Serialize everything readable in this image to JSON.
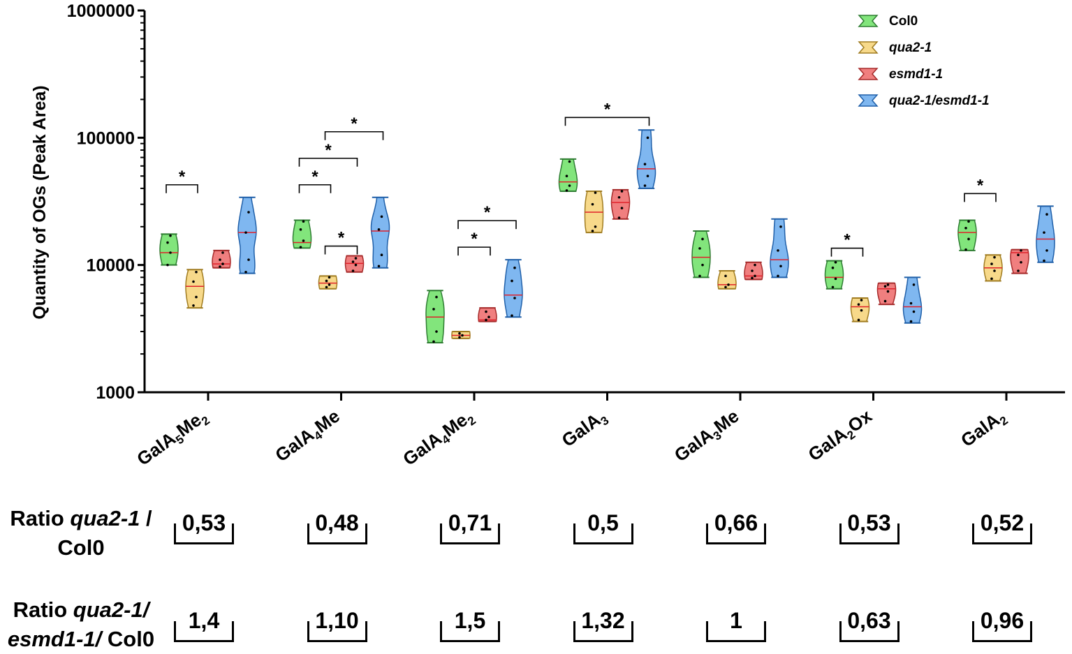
{
  "chart_data": {
    "type": "violin",
    "ylabel": "Quantity of OGs (Peak Area)",
    "yscale": "log",
    "ylim": [
      1000,
      1000000
    ],
    "yticks": [
      "1000",
      "10000",
      "100000",
      "1000000"
    ],
    "categories": [
      {
        "base": "GalA",
        "sub1": "5",
        "mid": "Me",
        "sub2": "2"
      },
      {
        "base": "GalA",
        "sub1": "4",
        "mid": "Me",
        "sub2": ""
      },
      {
        "base": "GalA",
        "sub1": "4",
        "mid": "Me",
        "sub2": "2"
      },
      {
        "base": "GalA",
        "sub1": "3",
        "mid": "",
        "sub2": ""
      },
      {
        "base": "GalA",
        "sub1": "3",
        "mid": "Me",
        "sub2": ""
      },
      {
        "base": "GalA",
        "sub1": "2",
        "mid": "Ox",
        "sub2": ""
      },
      {
        "base": "GalA",
        "sub1": "2",
        "mid": "",
        "sub2": ""
      }
    ],
    "series": [
      {
        "name": "Col0",
        "italic": false,
        "fill": "#82e57c",
        "stroke": "#2e7d32",
        "violins": [
          {
            "min": 10000,
            "max": 17500,
            "median": 12500,
            "points": [
              10000,
              12500,
              15000,
              17000
            ]
          },
          {
            "min": 13600,
            "max": 22500,
            "median": 15000,
            "points": [
              13800,
              15500,
              19000,
              22000
            ]
          },
          {
            "min": 2450,
            "max": 6300,
            "median": 3900,
            "points": [
              2500,
              3000,
              4500,
              5600
            ]
          },
          {
            "min": 38000,
            "max": 68000,
            "median": 45000,
            "points": [
              38500,
              42000,
              50000,
              65000
            ]
          },
          {
            "min": 8000,
            "max": 18500,
            "median": 11500,
            "points": [
              8200,
              10000,
              13500,
              16000
            ]
          },
          {
            "min": 6500,
            "max": 10800,
            "median": 8000,
            "points": [
              6700,
              7800,
              9500,
              10500
            ]
          },
          {
            "min": 13000,
            "max": 22500,
            "median": 18000,
            "points": [
              13200,
              16000,
              19500,
              22000
            ]
          }
        ]
      },
      {
        "name": "qua2-1",
        "italic": true,
        "fill": "#f7d98a",
        "stroke": "#a07c20",
        "violins": [
          {
            "min": 4600,
            "max": 9200,
            "median": 6800,
            "points": [
              4800,
              5600,
              7400,
              8800
            ]
          },
          {
            "min": 6500,
            "max": 8200,
            "median": 7200,
            "points": [
              6700,
              7000,
              7500,
              8000
            ]
          },
          {
            "min": 2650,
            "max": 3000,
            "median": 2800,
            "points": [
              2700,
              2800,
              2900
            ]
          },
          {
            "min": 18000,
            "max": 38000,
            "median": 26000,
            "points": [
              18500,
              20000,
              30000,
              37000
            ]
          },
          {
            "min": 6500,
            "max": 9000,
            "median": 7000,
            "points": [
              6700,
              7000,
              8200
            ]
          },
          {
            "min": 3600,
            "max": 5500,
            "median": 4700,
            "points": [
              3700,
              4400,
              4900,
              5300
            ]
          },
          {
            "min": 7500,
            "max": 12000,
            "median": 9500,
            "points": [
              7800,
              9000,
              10200,
              11500
            ]
          }
        ]
      },
      {
        "name": "esmd1-1",
        "italic": true,
        "fill": "#f07f7f",
        "stroke": "#a52a2a",
        "violins": [
          {
            "min": 9500,
            "max": 13000,
            "median": 10200,
            "points": [
              9700,
              10200,
              11000,
              12500
            ]
          },
          {
            "min": 8800,
            "max": 11800,
            "median": 10300,
            "points": [
              9000,
              10000,
              10600,
              11300
            ]
          },
          {
            "min": 3600,
            "max": 4600,
            "median": 3700,
            "points": [
              3700,
              3900,
              4300
            ]
          },
          {
            "min": 23000,
            "max": 39000,
            "median": 31000,
            "points": [
              23500,
              28000,
              34000,
              38000
            ]
          },
          {
            "min": 7700,
            "max": 10500,
            "median": 8200,
            "points": [
              7900,
              8200,
              9000,
              10000
            ]
          },
          {
            "min": 4900,
            "max": 7200,
            "median": 6500,
            "points": [
              5200,
              6200,
              6800,
              7000
            ]
          },
          {
            "min": 8600,
            "max": 13200,
            "median": 12500,
            "points": [
              9000,
              10500,
              12000,
              13000
            ]
          }
        ]
      },
      {
        "name": "qua2-1/esmd1-1",
        "italic": true,
        "fill": "#7fb7f0",
        "stroke": "#1f5fa8",
        "violins": [
          {
            "min": 8600,
            "max": 34000,
            "median": 18000,
            "points": [
              8800,
              11000,
              18000,
              26000
            ]
          },
          {
            "min": 9500,
            "max": 34000,
            "median": 18500,
            "points": [
              9800,
              12000,
              19000,
              24000
            ]
          },
          {
            "min": 3900,
            "max": 11000,
            "median": 5800,
            "points": [
              4000,
              5500,
              7500,
              9500
            ]
          },
          {
            "min": 40000,
            "max": 115000,
            "median": 57000,
            "points": [
              42000,
              50000,
              62000,
              100000
            ]
          },
          {
            "min": 8000,
            "max": 23000,
            "median": 11000,
            "points": [
              8200,
              9800,
              13000,
              20000
            ]
          },
          {
            "min": 3500,
            "max": 8000,
            "median": 4700,
            "points": [
              3600,
              4300,
              5000,
              7000
            ]
          },
          {
            "min": 10500,
            "max": 29000,
            "median": 16000,
            "points": [
              10800,
              13000,
              18000,
              25000
            ]
          }
        ]
      }
    ],
    "significance": [
      {
        "category": 0,
        "from": 0,
        "to": 1,
        "level": 0,
        "label": "*"
      },
      {
        "category": 1,
        "from": 0,
        "to": 1,
        "level": 0,
        "label": "*"
      },
      {
        "category": 1,
        "from": 1,
        "to": 2,
        "level": -1,
        "label": "*"
      },
      {
        "category": 1,
        "from": 0,
        "to": 2,
        "level": 1,
        "label": "*"
      },
      {
        "category": 1,
        "from": 1,
        "to": 3,
        "level": 2,
        "label": "*"
      },
      {
        "category": 2,
        "from": 1,
        "to": 2,
        "level": 0,
        "label": "*"
      },
      {
        "category": 2,
        "from": 1,
        "to": 3,
        "level": 1,
        "label": "*"
      },
      {
        "category": 3,
        "from": 0,
        "to": 3,
        "level": 0,
        "label": "*"
      },
      {
        "category": 5,
        "from": 0,
        "to": 1,
        "level": 0,
        "label": "*"
      },
      {
        "category": 6,
        "from": 0,
        "to": 1,
        "level": 0,
        "label": "*"
      }
    ]
  },
  "ratios": {
    "row1": {
      "label_prefix": "Ratio ",
      "label_italic": "qua2-1",
      "label_suffix": " /",
      "label_line2": "Col0",
      "values": [
        "0,53",
        "0,48",
        "0,71",
        "0,5",
        "0,66",
        "0,53",
        "0,52"
      ]
    },
    "row2": {
      "label_prefix": "Ratio ",
      "label_italic": "qua2-1/",
      "label_line2_italic": "esmd1-1/",
      "label_line2_suffix": " Col0",
      "values": [
        "1,4",
        "1,10",
        "1,5",
        "1,32",
        "1",
        "0,63",
        "0,96"
      ]
    }
  }
}
